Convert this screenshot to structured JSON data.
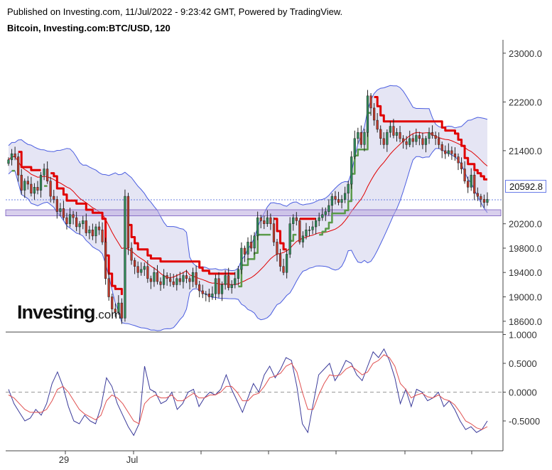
{
  "header": {
    "published": "Published on Investing.com, 11/Jul/2022 - 9:23:42 GMT, Powered by TradingView.",
    "symbol": "Bitcoin, Investing.com:BTC/USD, 120"
  },
  "logo": {
    "brand": "Investing",
    "suffix": ".com"
  },
  "current_price_label": "20592.8",
  "colors": {
    "up_candle": "#2e8b57",
    "down_candle": "#c0392b",
    "bollinger_line": "#4a5de0",
    "bollinger_fill": "#dcdcf0",
    "stop_red": "#e00000",
    "stop_green": "#5a9a4a",
    "support_zone": "#b9aadf",
    "osc_main": "#3a3a9a",
    "osc_signal": "#e05050"
  },
  "chart_data": [
    {
      "type": "candlestick",
      "title": "Bitcoin, Investing.com:BTC/USD, 120",
      "y_ticks": [
        "23000.0",
        "22200.0",
        "21400.0",
        "20200.0",
        "19800.0",
        "19400.0",
        "19000.0",
        "18600.0"
      ],
      "x_ticks": [
        "29",
        "Jul"
      ],
      "ylim": [
        18450,
        23100
      ],
      "current_price": 20592.8,
      "support_zone": [
        20330,
        20430
      ],
      "close": [
        21250,
        21350,
        21300,
        21000,
        20750,
        20900,
        20850,
        20700,
        20800,
        20750,
        21000,
        21100,
        20900,
        20650,
        20600,
        20400,
        20450,
        20300,
        20200,
        20350,
        20300,
        20150,
        20200,
        20250,
        20050,
        20100,
        20000,
        20150,
        20100,
        19900,
        19300,
        19000,
        18800,
        18750,
        18900,
        18650,
        20650,
        19800,
        19600,
        19500,
        19400,
        19450,
        19500,
        19300,
        19250,
        19400,
        19250,
        19200,
        19350,
        19300,
        19250,
        19200,
        19300,
        19250,
        19350,
        19300,
        19250,
        19400,
        19200,
        19100,
        19050,
        19050,
        19000,
        19050,
        19300,
        19050,
        19200,
        19350,
        19150,
        19200,
        19300,
        19450,
        19800,
        19700,
        19900,
        19800,
        20000,
        20300,
        20250,
        20200,
        20300,
        20200,
        19900,
        19700,
        19500,
        19400,
        19700,
        20200,
        20300,
        20250,
        19900,
        20000,
        20100,
        20100,
        20150,
        20250,
        20300,
        20350,
        20400,
        20500,
        20650,
        20600,
        20550,
        20600,
        20700,
        20850,
        21300,
        21600,
        21700,
        21500,
        21700,
        22300,
        22100,
        21900,
        21750,
        21600,
        21500,
        21700,
        21800,
        21650,
        21700,
        21600,
        21550,
        21500,
        21600,
        21550,
        21650,
        21600,
        21500,
        21600,
        21700,
        21650,
        21600,
        21500,
        21400,
        21350,
        21400,
        21350,
        21300,
        21200,
        21100,
        20900,
        20800,
        21000,
        20700,
        20650,
        20600,
        20550,
        20600
      ]
    },
    {
      "type": "line",
      "y_ticks": [
        "1.0000",
        "0.5000",
        "0.0000",
        "-0.5000"
      ],
      "ylim": [
        -1.0,
        1.05
      ],
      "zero_line": 0.0,
      "series": [
        {
          "values": [
            0.05,
            -0.2,
            -0.35,
            -0.5,
            -0.45,
            -0.3,
            -0.4,
            -0.2,
            0.15,
            0.35,
            0.1,
            -0.25,
            -0.5,
            -0.55,
            -0.4,
            -0.5,
            -0.55,
            -0.25,
            0.25,
            0.1,
            -0.2,
            -0.4,
            -0.6,
            -0.75,
            -0.55,
            0.45,
            0.05,
            0.0,
            -0.2,
            -0.15,
            0.0,
            -0.3,
            -0.2,
            0.0,
            0.05,
            -0.25,
            -0.1,
            0.0,
            -0.05,
            0.05,
            0.3,
            0.05,
            -0.15,
            -0.35,
            -0.1,
            0.15,
            0.0,
            0.3,
            0.45,
            0.25,
            0.4,
            0.6,
            0.55,
            0.1,
            -0.55,
            -0.7,
            -0.2,
            0.3,
            0.4,
            0.5,
            0.2,
            0.35,
            0.55,
            0.5,
            0.3,
            0.2,
            0.45,
            0.7,
            0.6,
            0.75,
            0.55,
            0.25,
            -0.2,
            0.05,
            -0.25,
            0.05,
            0.0,
            -0.15,
            -0.1,
            0.0,
            -0.25,
            -0.15,
            -0.3,
            -0.5,
            -0.65,
            -0.6,
            -0.7,
            -0.65,
            -0.5
          ]
        },
        {
          "values": [
            -0.05,
            -0.1,
            -0.2,
            -0.3,
            -0.35,
            -0.35,
            -0.35,
            -0.3,
            -0.15,
            0.05,
            0.1,
            0.0,
            -0.15,
            -0.3,
            -0.38,
            -0.43,
            -0.48,
            -0.4,
            -0.15,
            -0.05,
            -0.1,
            -0.2,
            -0.35,
            -0.5,
            -0.55,
            -0.2,
            -0.1,
            -0.05,
            -0.1,
            -0.1,
            -0.05,
            -0.15,
            -0.15,
            -0.08,
            -0.02,
            -0.1,
            -0.1,
            -0.05,
            -0.05,
            0.0,
            0.1,
            0.1,
            0.0,
            -0.15,
            -0.15,
            -0.05,
            -0.02,
            0.1,
            0.25,
            0.28,
            0.33,
            0.45,
            0.5,
            0.35,
            0.0,
            -0.3,
            -0.3,
            -0.05,
            0.15,
            0.3,
            0.28,
            0.3,
            0.4,
            0.45,
            0.38,
            0.3,
            0.35,
            0.5,
            0.55,
            0.65,
            0.6,
            0.45,
            0.15,
            0.05,
            -0.1,
            -0.05,
            -0.02,
            -0.08,
            -0.1,
            -0.05,
            -0.12,
            -0.15,
            -0.22,
            -0.35,
            -0.5,
            -0.55,
            -0.62,
            -0.65,
            -0.6
          ]
        }
      ]
    }
  ]
}
